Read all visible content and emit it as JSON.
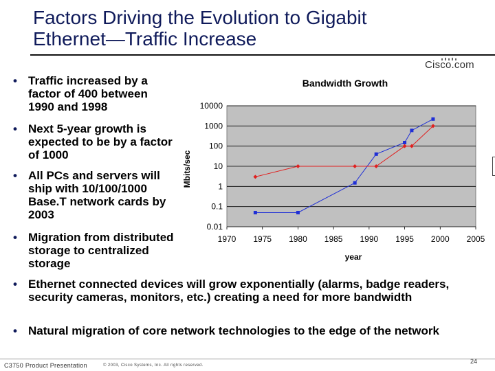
{
  "title": {
    "line1": "Factors Driving the Evolution to Gigabit",
    "line2": "Ethernet—Traffic Increase"
  },
  "logo": "Cisco.com",
  "bullets": [
    "Traffic increased by a factor of 400 between 1990 and 1998",
    "Next 5-year growth is expected to be by a factor of 1000",
    "All PCs and servers will ship with 10/100/1000 Base.T network cards by 2003",
    "Migration from distributed storage to centralized storage",
    "Ethernet connected devices will grow exponentially (alarms, badge readers, security cameras, monitors, etc.) creating a need for more bandwidth",
    "Natural migration of core network technologies to the edge of the network"
  ],
  "bullet_glyph": "•",
  "footer": {
    "left": "C3750 Product Presentation",
    "middle": "© 2003, Cisco Systems, Inc. All rights reserved.",
    "page": "24"
  },
  "colors": {
    "title": "#0f1a5a",
    "plot_bg": "#c0c0c0",
    "series_blue": "#1f2fd6",
    "series_red": "#e0201f"
  },
  "chart_data": {
    "type": "line",
    "title": "Bandwidth Growth",
    "xlabel": "year",
    "ylabel": "Mbits/sec",
    "yscale": "log",
    "xlim": [
      1970,
      2005
    ],
    "ylim": [
      0.01,
      10000
    ],
    "x_ticks": [
      1970,
      1975,
      1980,
      1985,
      1990,
      1995,
      2000,
      2005
    ],
    "y_ticks": [
      0.01,
      0.1,
      1,
      10,
      100,
      1000,
      10000
    ],
    "y_tick_labels": [
      "0.01",
      "0.1",
      "1",
      "10",
      "100",
      "1000",
      "10000"
    ],
    "grid": "horizontal",
    "legend": "none",
    "series": [
      {
        "color": "#1f2fd6",
        "marker": "square",
        "points": [
          [
            1974,
            0.05
          ],
          [
            1980,
            0.05
          ],
          [
            1988,
            1.5
          ],
          [
            1991,
            40
          ],
          [
            1995,
            150
          ],
          [
            1996,
            600
          ],
          [
            1999,
            2200
          ]
        ]
      },
      {
        "color": "#e0201f",
        "marker": "diamond",
        "points": [
          [
            1974,
            3
          ],
          [
            1980,
            10
          ],
          [
            1988,
            10
          ],
          [
            1991,
            10
          ],
          [
            1995,
            100
          ],
          [
            1996,
            100
          ],
          [
            1999,
            1000
          ]
        ]
      }
    ]
  }
}
